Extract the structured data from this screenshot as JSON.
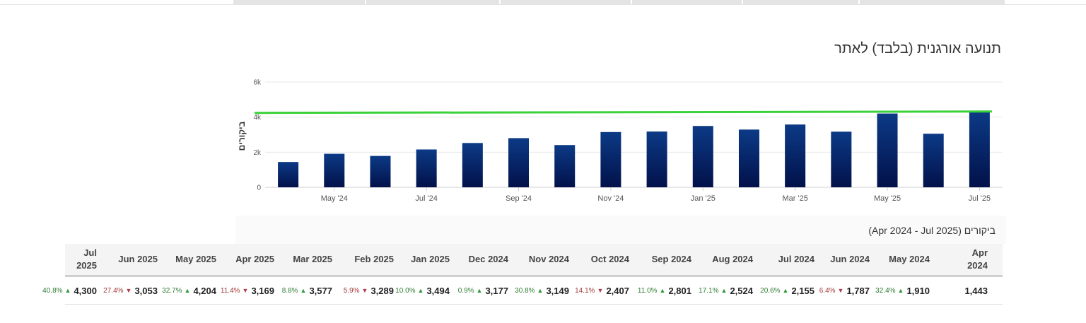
{
  "title": "תנועה אורגנית (בלבד) לאתר",
  "subtitle": "ביקורים (Apr 2024 - Jul 2025)",
  "colors": {
    "bar_top": "#0c3a86",
    "bar_bottom": "#02114a",
    "line": "#3ad13a",
    "up": "#2f9a3a",
    "down": "#b03b4a"
  },
  "chart_data": {
    "type": "bar",
    "ylabel": "ביקורים",
    "ylim": [
      0,
      6000
    ],
    "yticks": [
      0,
      2000,
      4000,
      6000
    ],
    "ytick_labels": [
      "0",
      "2k",
      "4k",
      "6k"
    ],
    "categories": [
      "Apr '24",
      "May '24",
      "Jun '24",
      "Jul '24",
      "Aug '24",
      "Sep '24",
      "Oct '24",
      "Nov '24",
      "Dec '24",
      "Jan '25",
      "Feb '25",
      "Mar '25",
      "Apr '25",
      "May '25",
      "Jun '25",
      "Jul '25"
    ],
    "xtick_labels": [
      "May '24",
      "Jul '24",
      "Sep '24",
      "Nov '24",
      "Jan '25",
      "Mar '25",
      "May '25",
      "Jul '25"
    ],
    "xtick_indices": [
      1,
      3,
      5,
      7,
      9,
      11,
      13,
      15
    ],
    "values": [
      1443,
      1910,
      1787,
      2155,
      2524,
      2801,
      2407,
      3149,
      3177,
      3494,
      3289,
      3577,
      3169,
      4204,
      3053,
      4300
    ],
    "reference_line": 4300,
    "grid": true,
    "legend": "none"
  },
  "table": {
    "columns": [
      {
        "label": "Jul 2025",
        "value": "4,300",
        "change": "40.8%",
        "dir": "up"
      },
      {
        "label": "Jun 2025",
        "value": "3,053",
        "change": "27.4%",
        "dir": "down"
      },
      {
        "label": "May 2025",
        "value": "4,204",
        "change": "32.7%",
        "dir": "up"
      },
      {
        "label": "Apr 2025",
        "value": "3,169",
        "change": "11.4%",
        "dir": "down"
      },
      {
        "label": "Mar 2025",
        "value": "3,577",
        "change": "8.8%",
        "dir": "up"
      },
      {
        "label": "Feb 2025",
        "value": "3,289",
        "change": "5.9%",
        "dir": "down"
      },
      {
        "label": "Jan 2025",
        "value": "3,494",
        "change": "10.0%",
        "dir": "up"
      },
      {
        "label": "Dec 2024",
        "value": "3,177",
        "change": "0.9%",
        "dir": "up"
      },
      {
        "label": "Nov 2024",
        "value": "3,149",
        "change": "30.8%",
        "dir": "up"
      },
      {
        "label": "Oct 2024",
        "value": "2,407",
        "change": "14.1%",
        "dir": "down"
      },
      {
        "label": "Sep 2024",
        "value": "2,801",
        "change": "11.0%",
        "dir": "up"
      },
      {
        "label": "Aug 2024",
        "value": "2,524",
        "change": "17.1%",
        "dir": "up"
      },
      {
        "label": "Jul 2024",
        "value": "2,155",
        "change": "20.6%",
        "dir": "up"
      },
      {
        "label": "Jun 2024",
        "value": "1,787",
        "change": "6.4%",
        "dir": "down"
      },
      {
        "label": "May 2024",
        "value": "1,910",
        "change": "32.4%",
        "dir": "up"
      },
      {
        "label": "Apr 2024",
        "value": "1,443",
        "change": "",
        "dir": ""
      }
    ]
  }
}
